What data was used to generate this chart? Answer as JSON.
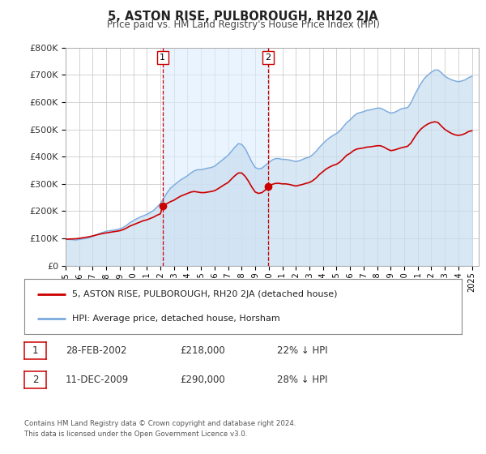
{
  "title": "5, ASTON RISE, PULBOROUGH, RH20 2JA",
  "subtitle": "Price paid vs. HM Land Registry's House Price Index (HPI)",
  "legend_line1": "5, ASTON RISE, PULBOROUGH, RH20 2JA (detached house)",
  "legend_line2": "HPI: Average price, detached house, Horsham",
  "footnote1": "Contains HM Land Registry data © Crown copyright and database right 2024.",
  "footnote2": "This data is licensed under the Open Government Licence v3.0.",
  "transaction1_label": "1",
  "transaction1_date": "28-FEB-2002",
  "transaction1_price": "£218,000",
  "transaction1_hpi": "22% ↓ HPI",
  "transaction2_label": "2",
  "transaction2_date": "11-DEC-2009",
  "transaction2_price": "£290,000",
  "transaction2_hpi": "28% ↓ HPI",
  "red_line_color": "#cc0000",
  "blue_line_color": "#7aaadd",
  "blue_fill_color": "#c8ddf0",
  "vline_color": "#cc0000",
  "grid_color": "#cccccc",
  "background_color": "#ffffff",
  "plot_bg_color": "#ffffff",
  "shade_color": "#ddeeff",
  "ylim": [
    0,
    800000
  ],
  "yticks": [
    0,
    100000,
    200000,
    300000,
    400000,
    500000,
    600000,
    700000,
    800000
  ],
  "ylabel_texts": [
    "£0",
    "£100K",
    "£200K",
    "£300K",
    "£400K",
    "£500K",
    "£600K",
    "£700K",
    "£800K"
  ],
  "xmin": 1995.0,
  "xmax": 2025.5,
  "transaction1_x": 2002.16,
  "transaction1_y": 218000,
  "transaction2_x": 2009.94,
  "transaction2_y": 290000,
  "hpi_data": [
    [
      1995.0,
      97000
    ],
    [
      1995.25,
      96000
    ],
    [
      1995.5,
      95000
    ],
    [
      1995.75,
      94000
    ],
    [
      1996.0,
      96000
    ],
    [
      1996.25,
      98000
    ],
    [
      1996.5,
      100000
    ],
    [
      1996.75,
      103000
    ],
    [
      1997.0,
      108000
    ],
    [
      1997.25,
      113000
    ],
    [
      1997.5,
      118000
    ],
    [
      1997.75,
      122000
    ],
    [
      1998.0,
      126000
    ],
    [
      1998.25,
      128000
    ],
    [
      1998.5,
      130000
    ],
    [
      1998.75,
      132000
    ],
    [
      1999.0,
      135000
    ],
    [
      1999.25,
      140000
    ],
    [
      1999.5,
      148000
    ],
    [
      1999.75,
      158000
    ],
    [
      2000.0,
      165000
    ],
    [
      2000.25,
      172000
    ],
    [
      2000.5,
      178000
    ],
    [
      2000.75,
      183000
    ],
    [
      2001.0,
      188000
    ],
    [
      2001.25,
      195000
    ],
    [
      2001.5,
      203000
    ],
    [
      2001.75,
      215000
    ],
    [
      2002.0,
      228000
    ],
    [
      2002.25,
      248000
    ],
    [
      2002.5,
      268000
    ],
    [
      2002.75,
      285000
    ],
    [
      2003.0,
      295000
    ],
    [
      2003.25,
      305000
    ],
    [
      2003.5,
      315000
    ],
    [
      2003.75,
      322000
    ],
    [
      2004.0,
      330000
    ],
    [
      2004.25,
      340000
    ],
    [
      2004.5,
      348000
    ],
    [
      2004.75,
      352000
    ],
    [
      2005.0,
      352000
    ],
    [
      2005.25,
      355000
    ],
    [
      2005.5,
      358000
    ],
    [
      2005.75,
      360000
    ],
    [
      2006.0,
      365000
    ],
    [
      2006.25,
      375000
    ],
    [
      2006.5,
      385000
    ],
    [
      2006.75,
      395000
    ],
    [
      2007.0,
      405000
    ],
    [
      2007.25,
      420000
    ],
    [
      2007.5,
      435000
    ],
    [
      2007.75,
      448000
    ],
    [
      2008.0,
      445000
    ],
    [
      2008.25,
      430000
    ],
    [
      2008.5,
      405000
    ],
    [
      2008.75,
      380000
    ],
    [
      2009.0,
      360000
    ],
    [
      2009.25,
      355000
    ],
    [
      2009.5,
      358000
    ],
    [
      2009.75,
      368000
    ],
    [
      2010.0,
      378000
    ],
    [
      2010.25,
      388000
    ],
    [
      2010.5,
      393000
    ],
    [
      2010.75,
      393000
    ],
    [
      2011.0,
      390000
    ],
    [
      2011.25,
      390000
    ],
    [
      2011.5,
      388000
    ],
    [
      2011.75,
      385000
    ],
    [
      2012.0,
      382000
    ],
    [
      2012.25,
      385000
    ],
    [
      2012.5,
      390000
    ],
    [
      2012.75,
      395000
    ],
    [
      2013.0,
      398000
    ],
    [
      2013.25,
      408000
    ],
    [
      2013.5,
      420000
    ],
    [
      2013.75,
      435000
    ],
    [
      2014.0,
      448000
    ],
    [
      2014.25,
      460000
    ],
    [
      2014.5,
      470000
    ],
    [
      2014.75,
      478000
    ],
    [
      2015.0,
      485000
    ],
    [
      2015.25,
      495000
    ],
    [
      2015.5,
      510000
    ],
    [
      2015.75,
      525000
    ],
    [
      2016.0,
      535000
    ],
    [
      2016.25,
      548000
    ],
    [
      2016.5,
      558000
    ],
    [
      2016.75,
      562000
    ],
    [
      2017.0,
      565000
    ],
    [
      2017.25,
      570000
    ],
    [
      2017.5,
      572000
    ],
    [
      2017.75,
      575000
    ],
    [
      2018.0,
      578000
    ],
    [
      2018.25,
      578000
    ],
    [
      2018.5,
      572000
    ],
    [
      2018.75,
      565000
    ],
    [
      2019.0,
      560000
    ],
    [
      2019.25,
      562000
    ],
    [
      2019.5,
      568000
    ],
    [
      2019.75,
      575000
    ],
    [
      2020.0,
      578000
    ],
    [
      2020.25,
      580000
    ],
    [
      2020.5,
      598000
    ],
    [
      2020.75,
      625000
    ],
    [
      2021.0,
      648000
    ],
    [
      2021.25,
      670000
    ],
    [
      2021.5,
      688000
    ],
    [
      2021.75,
      700000
    ],
    [
      2022.0,
      710000
    ],
    [
      2022.25,
      718000
    ],
    [
      2022.5,
      718000
    ],
    [
      2022.75,
      708000
    ],
    [
      2023.0,
      695000
    ],
    [
      2023.25,
      688000
    ],
    [
      2023.5,
      682000
    ],
    [
      2023.75,
      678000
    ],
    [
      2024.0,
      675000
    ],
    [
      2024.25,
      678000
    ],
    [
      2024.5,
      682000
    ],
    [
      2024.75,
      690000
    ],
    [
      2025.0,
      695000
    ]
  ],
  "price_paid_data": [
    [
      1995.0,
      97000
    ],
    [
      1995.25,
      97500
    ],
    [
      1995.5,
      98000
    ],
    [
      1995.75,
      98500
    ],
    [
      1996.0,
      100000
    ],
    [
      1996.25,
      102000
    ],
    [
      1996.5,
      104000
    ],
    [
      1996.75,
      106000
    ],
    [
      1997.0,
      109000
    ],
    [
      1997.25,
      112000
    ],
    [
      1997.5,
      115000
    ],
    [
      1997.75,
      118000
    ],
    [
      1998.0,
      120000
    ],
    [
      1998.25,
      122000
    ],
    [
      1998.5,
      124000
    ],
    [
      1998.75,
      126000
    ],
    [
      1999.0,
      128000
    ],
    [
      1999.25,
      132000
    ],
    [
      1999.5,
      138000
    ],
    [
      1999.75,
      145000
    ],
    [
      2000.0,
      150000
    ],
    [
      2000.25,
      155000
    ],
    [
      2000.5,
      160000
    ],
    [
      2000.75,
      165000
    ],
    [
      2001.0,
      168000
    ],
    [
      2001.25,
      173000
    ],
    [
      2001.5,
      178000
    ],
    [
      2001.75,
      185000
    ],
    [
      2002.0,
      190000
    ],
    [
      2002.16,
      218000
    ],
    [
      2002.25,
      220000
    ],
    [
      2002.5,
      228000
    ],
    [
      2002.75,
      235000
    ],
    [
      2003.0,
      240000
    ],
    [
      2003.25,
      248000
    ],
    [
      2003.5,
      255000
    ],
    [
      2003.75,
      260000
    ],
    [
      2004.0,
      265000
    ],
    [
      2004.25,
      270000
    ],
    [
      2004.5,
      272000
    ],
    [
      2004.75,
      270000
    ],
    [
      2005.0,
      268000
    ],
    [
      2005.25,
      268000
    ],
    [
      2005.5,
      270000
    ],
    [
      2005.75,
      272000
    ],
    [
      2006.0,
      275000
    ],
    [
      2006.25,
      282000
    ],
    [
      2006.5,
      290000
    ],
    [
      2006.75,
      298000
    ],
    [
      2007.0,
      305000
    ],
    [
      2007.25,
      318000
    ],
    [
      2007.5,
      330000
    ],
    [
      2007.75,
      340000
    ],
    [
      2008.0,
      340000
    ],
    [
      2008.25,
      328000
    ],
    [
      2008.5,
      310000
    ],
    [
      2008.75,
      288000
    ],
    [
      2009.0,
      270000
    ],
    [
      2009.25,
      265000
    ],
    [
      2009.5,
      268000
    ],
    [
      2009.75,
      278000
    ],
    [
      2009.94,
      290000
    ],
    [
      2010.0,
      292000
    ],
    [
      2010.25,
      298000
    ],
    [
      2010.5,
      302000
    ],
    [
      2010.75,
      302000
    ],
    [
      2011.0,
      300000
    ],
    [
      2011.25,
      300000
    ],
    [
      2011.5,
      298000
    ],
    [
      2011.75,
      295000
    ],
    [
      2012.0,
      292000
    ],
    [
      2012.25,
      295000
    ],
    [
      2012.5,
      298000
    ],
    [
      2012.75,
      302000
    ],
    [
      2013.0,
      305000
    ],
    [
      2013.25,
      312000
    ],
    [
      2013.5,
      322000
    ],
    [
      2013.75,
      335000
    ],
    [
      2014.0,
      345000
    ],
    [
      2014.25,
      355000
    ],
    [
      2014.5,
      362000
    ],
    [
      2014.75,
      368000
    ],
    [
      2015.0,
      372000
    ],
    [
      2015.25,
      380000
    ],
    [
      2015.5,
      392000
    ],
    [
      2015.75,
      405000
    ],
    [
      2016.0,
      412000
    ],
    [
      2016.25,
      422000
    ],
    [
      2016.5,
      428000
    ],
    [
      2016.75,
      430000
    ],
    [
      2017.0,
      432000
    ],
    [
      2017.25,
      435000
    ],
    [
      2017.5,
      436000
    ],
    [
      2017.75,
      438000
    ],
    [
      2018.0,
      440000
    ],
    [
      2018.25,
      440000
    ],
    [
      2018.5,
      435000
    ],
    [
      2018.75,
      428000
    ],
    [
      2019.0,
      422000
    ],
    [
      2019.25,
      424000
    ],
    [
      2019.5,
      428000
    ],
    [
      2019.75,
      432000
    ],
    [
      2020.0,
      435000
    ],
    [
      2020.25,
      438000
    ],
    [
      2020.5,
      450000
    ],
    [
      2020.75,
      470000
    ],
    [
      2021.0,
      488000
    ],
    [
      2021.25,
      502000
    ],
    [
      2021.5,
      512000
    ],
    [
      2021.75,
      520000
    ],
    [
      2022.0,
      525000
    ],
    [
      2022.25,
      528000
    ],
    [
      2022.5,
      525000
    ],
    [
      2022.75,
      512000
    ],
    [
      2023.0,
      500000
    ],
    [
      2023.25,
      492000
    ],
    [
      2023.5,
      485000
    ],
    [
      2023.75,
      480000
    ],
    [
      2024.0,
      478000
    ],
    [
      2024.25,
      480000
    ],
    [
      2024.5,
      485000
    ],
    [
      2024.75,
      492000
    ],
    [
      2025.0,
      495000
    ]
  ]
}
